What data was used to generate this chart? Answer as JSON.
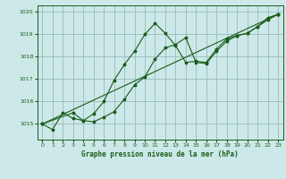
{
  "bg_color": "#cce8e8",
  "grid_color": "#99bbbb",
  "line_color": "#1a5c1a",
  "title": "Graphe pression niveau de la mer (hPa)",
  "title_color": "#1a5c1a",
  "xlim": [
    -0.5,
    23.5
  ],
  "ylim": [
    1014.3,
    1020.3
  ],
  "yticks": [
    1015,
    1016,
    1017,
    1018,
    1019,
    1020
  ],
  "xticks": [
    0,
    1,
    2,
    3,
    4,
    5,
    6,
    7,
    8,
    9,
    10,
    11,
    12,
    13,
    14,
    15,
    16,
    17,
    18,
    19,
    20,
    21,
    22,
    23
  ],
  "line1_x": [
    0,
    1,
    2,
    3,
    4,
    5,
    6,
    7,
    8,
    9,
    10,
    11,
    12,
    13,
    14,
    15,
    16,
    17,
    18,
    19,
    20,
    21,
    22,
    23
  ],
  "line1_y": [
    1015.0,
    1014.75,
    1015.5,
    1015.25,
    1015.15,
    1015.45,
    1016.0,
    1016.95,
    1017.65,
    1018.25,
    1019.0,
    1019.5,
    1019.05,
    1018.5,
    1017.75,
    1017.8,
    1017.75,
    1018.35,
    1018.8,
    1018.95,
    1019.05,
    1019.35,
    1019.75,
    1019.9
  ],
  "line2_x": [
    0,
    3,
    4,
    5,
    6,
    7,
    8,
    9,
    10,
    11,
    12,
    13,
    14,
    15,
    16,
    17,
    18,
    19,
    20,
    21,
    22,
    23
  ],
  "line2_y": [
    1015.0,
    1015.5,
    1015.15,
    1015.1,
    1015.3,
    1015.55,
    1016.1,
    1016.75,
    1017.1,
    1017.9,
    1018.4,
    1018.55,
    1018.85,
    1017.75,
    1017.7,
    1018.25,
    1018.7,
    1018.95,
    1019.05,
    1019.35,
    1019.65,
    1019.9
  ],
  "line3_x": [
    0,
    23
  ],
  "line3_y": [
    1015.0,
    1019.9
  ]
}
